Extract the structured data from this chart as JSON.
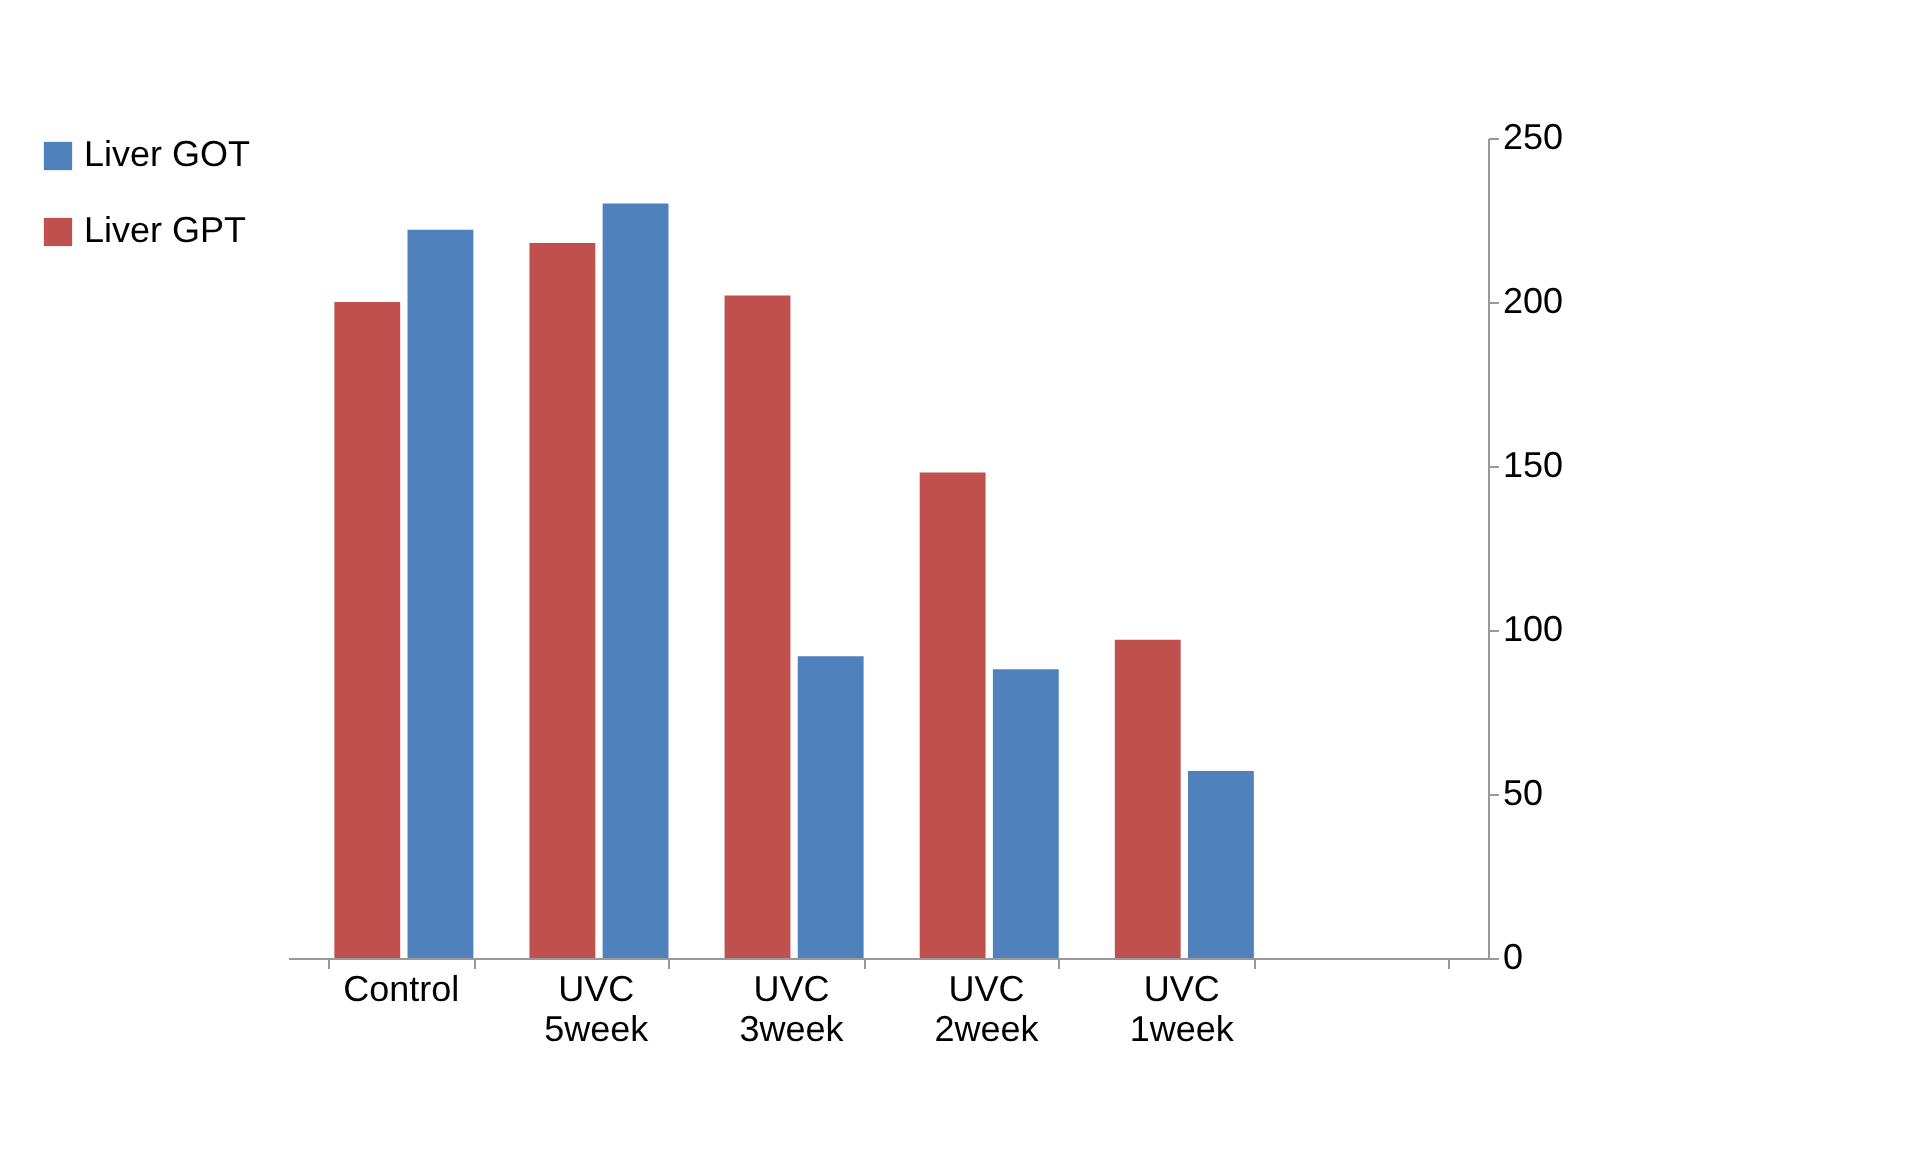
{
  "chart_data": {
    "type": "bar",
    "categories": [
      "Control",
      "UVC 5week",
      "UVC 3week",
      "UVC 2week",
      "UVC 1week",
      null
    ],
    "series": [
      {
        "name": "Liver GOT",
        "color": "#4f81bd",
        "values": [
          222,
          230,
          92,
          88,
          57,
          null
        ]
      },
      {
        "name": "Liver GPT",
        "color": "#c0504d",
        "values": [
          200,
          218,
          202,
          148,
          97,
          null
        ]
      }
    ],
    "ylim": [
      0,
      250
    ],
    "yticks": [
      0,
      50,
      100,
      150,
      200,
      250
    ],
    "grid": false,
    "legend": "left"
  }
}
